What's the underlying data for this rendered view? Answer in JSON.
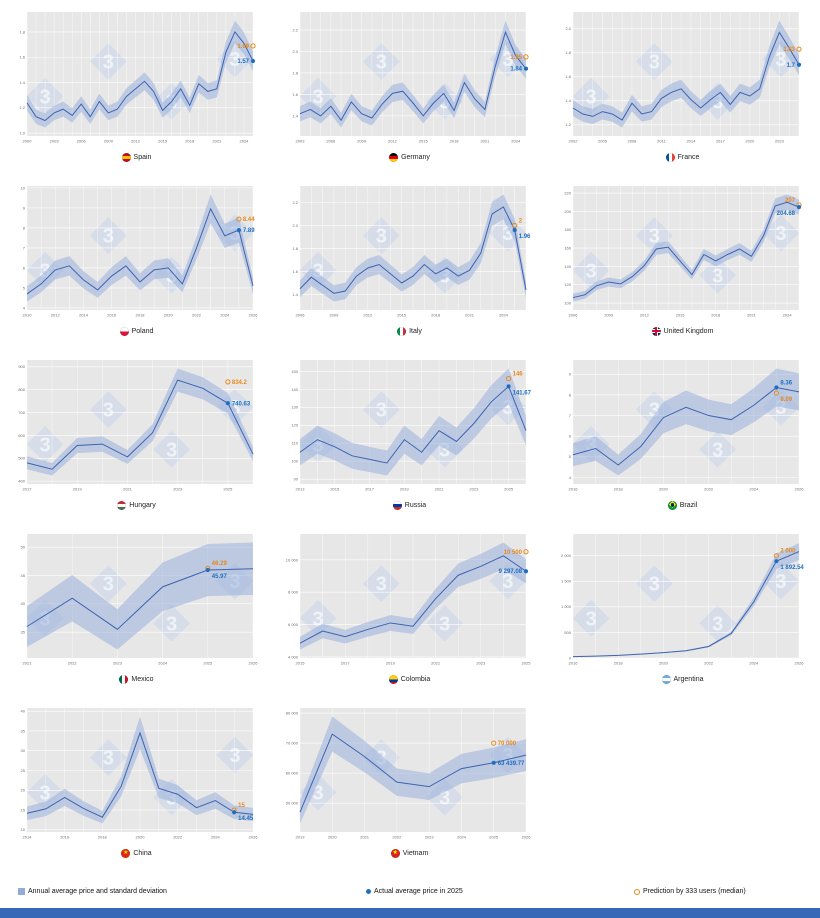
{
  "legend": {
    "items": [
      {
        "label": "Annual average price and standard deviation",
        "marker": "band-swatch"
      },
      {
        "label": "Actual average price in 2025",
        "marker": "filled-dot"
      },
      {
        "label": "Prediction by 333 users (median)",
        "marker": "hollow-circle"
      }
    ]
  },
  "style": {
    "plot_bg": "#e7e7e8",
    "grid": "#ffffff",
    "band": "#92abd9",
    "line": "#3e63b0",
    "actual": "#1e6fc0",
    "prediction": "#e8891b",
    "watermark": "#c6d4e9",
    "watermark_text": "#f3f7fb",
    "axis_text": "#6e6e6e",
    "footer_bar": "#3668b8"
  },
  "chart_data": [
    {
      "type": "line",
      "country": "Spain",
      "flag": {
        "name": "flag-spain-icon",
        "type": "h",
        "stripes": [
          "#c60b1e",
          "#ffc400",
          "#c60b1e"
        ]
      },
      "years": [
        2000,
        2001,
        2002,
        2003,
        2004,
        2005,
        2006,
        2007,
        2008,
        2009,
        2010,
        2011,
        2012,
        2013,
        2014,
        2015,
        2016,
        2017,
        2018,
        2019,
        2020,
        2021,
        2022,
        2023,
        2024,
        2025
      ],
      "values": [
        1.24,
        1.13,
        1.1,
        1.16,
        1.19,
        1.14,
        1.23,
        1.13,
        1.25,
        1.16,
        1.19,
        1.29,
        1.35,
        1.41,
        1.33,
        1.18,
        1.25,
        1.35,
        1.22,
        1.39,
        1.33,
        1.35,
        1.64,
        1.8,
        1.71,
        1.57
      ],
      "spread_frac": 0.05,
      "marker_year": 2025,
      "prediction": {
        "value": 1.69,
        "label": "1.69"
      },
      "actual": {
        "value": 1.57,
        "label": "1.57"
      }
    },
    {
      "type": "line",
      "country": "Germany",
      "flag": {
        "name": "flag-germany-icon",
        "type": "h",
        "stripes": [
          "#000000",
          "#dd0000",
          "#ffce00"
        ]
      },
      "years": [
        2003,
        2004,
        2005,
        2006,
        2007,
        2008,
        2009,
        2010,
        2011,
        2012,
        2013,
        2014,
        2015,
        2016,
        2017,
        2018,
        2019,
        2020,
        2021,
        2022,
        2023,
        2024,
        2025
      ],
      "values": [
        1.42,
        1.46,
        1.4,
        1.49,
        1.36,
        1.53,
        1.42,
        1.38,
        1.51,
        1.61,
        1.63,
        1.52,
        1.4,
        1.52,
        1.61,
        1.45,
        1.71,
        1.56,
        1.46,
        1.86,
        2.18,
        1.96,
        1.84
      ],
      "spread_frac": 0.05,
      "marker_year": 2025,
      "prediction": {
        "value": 1.95,
        "label": "1.95"
      },
      "actual": {
        "value": 1.84,
        "label": "1.84"
      }
    },
    {
      "type": "line",
      "country": "France",
      "flag": {
        "name": "flag-france-icon",
        "type": "v",
        "stripes": [
          "#0055a4",
          "#ffffff",
          "#ef4135"
        ]
      },
      "years": [
        2002,
        2003,
        2004,
        2005,
        2006,
        2007,
        2008,
        2009,
        2010,
        2011,
        2012,
        2013,
        2014,
        2015,
        2016,
        2017,
        2018,
        2019,
        2020,
        2021,
        2022,
        2023,
        2024,
        2025
      ],
      "values": [
        1.34,
        1.29,
        1.27,
        1.31,
        1.29,
        1.24,
        1.38,
        1.29,
        1.31,
        1.42,
        1.47,
        1.5,
        1.41,
        1.34,
        1.41,
        1.47,
        1.37,
        1.47,
        1.44,
        1.5,
        1.77,
        1.97,
        1.84,
        1.7
      ],
      "spread_frac": 0.05,
      "marker_year": 2025,
      "prediction": {
        "value": 1.83,
        "label": "1.83"
      },
      "actual": {
        "value": 1.7,
        "label": "1.7"
      }
    },
    {
      "type": "line",
      "country": "Poland",
      "flag": {
        "name": "flag-poland-icon",
        "type": "h",
        "stripes": [
          "#ffffff",
          "#dc143c"
        ]
      },
      "years": [
        2010,
        2011,
        2012,
        2013,
        2014,
        2015,
        2016,
        2017,
        2018,
        2019,
        2020,
        2021,
        2022,
        2023,
        2024,
        2025,
        2026
      ],
      "values": [
        4.7,
        5.2,
        5.9,
        6.1,
        5.4,
        4.9,
        5.6,
        6.1,
        5.3,
        5.9,
        6.0,
        5.2,
        7.0,
        8.95,
        7.6,
        7.89,
        5.1
      ],
      "spread_frac": 0.08,
      "marker_year": 2025,
      "prediction": {
        "value": 8.44,
        "label": "8.44"
      },
      "actual": {
        "value": 7.89,
        "label": "7.89"
      }
    },
    {
      "type": "line",
      "country": "Italy",
      "flag": {
        "name": "flag-italy-icon",
        "type": "v",
        "stripes": [
          "#009246",
          "#ffffff",
          "#ce2b37"
        ]
      },
      "years": [
        2006,
        2007,
        2008,
        2009,
        2010,
        2011,
        2012,
        2013,
        2014,
        2015,
        2016,
        2017,
        2018,
        2019,
        2020,
        2021,
        2022,
        2023,
        2024,
        2025,
        2026
      ],
      "values": [
        1.45,
        1.55,
        1.48,
        1.41,
        1.43,
        1.56,
        1.63,
        1.66,
        1.58,
        1.5,
        1.56,
        1.66,
        1.58,
        1.63,
        1.56,
        1.61,
        1.76,
        2.1,
        2.16,
        1.96,
        1.44
      ],
      "spread_frac": 0.05,
      "marker_year": 2025,
      "prediction": {
        "value": 2,
        "label": "2"
      },
      "actual": {
        "value": 1.96,
        "label": "1.96"
      }
    },
    {
      "type": "line",
      "country": "United Kingdom",
      "flag": {
        "name": "flag-united-kingdom-icon",
        "type": "uk"
      },
      "years": [
        2006,
        2007,
        2008,
        2009,
        2010,
        2011,
        2012,
        2013,
        2014,
        2015,
        2016,
        2017,
        2018,
        2019,
        2020,
        2021,
        2022,
        2023,
        2024,
        2025
      ],
      "values": [
        106,
        109,
        119,
        123,
        121,
        129,
        141,
        159,
        161,
        146,
        131,
        153,
        146,
        153,
        159,
        151,
        173,
        206,
        210,
        204.68
      ],
      "spread_frac": 0.04,
      "marker_year": 2025,
      "prediction": {
        "value": 207,
        "label": "207"
      },
      "actual": {
        "value": 204.68,
        "label": "204.68"
      }
    },
    {
      "type": "line",
      "country": "Hungary",
      "flag": {
        "name": "flag-hungary-icon",
        "type": "h",
        "stripes": [
          "#ce2939",
          "#ffffff",
          "#477050"
        ]
      },
      "years": [
        2017,
        2018,
        2019,
        2020,
        2021,
        2022,
        2023,
        2024,
        2025,
        2026
      ],
      "values": [
        480,
        452,
        556,
        562,
        506,
        612,
        842,
        806,
        740.63,
        518
      ],
      "spread_frac": 0.06,
      "marker_year": 2025,
      "prediction": {
        "value": 834.2,
        "label": "834.2"
      },
      "actual": {
        "value": 740.63,
        "label": "740.63"
      }
    },
    {
      "type": "line",
      "country": "Russia",
      "flag": {
        "name": "flag-russia-icon",
        "type": "h",
        "stripes": [
          "#ffffff",
          "#0039a6",
          "#d52b1e"
        ]
      },
      "years": [
        2013,
        2014,
        2015,
        2016,
        2017,
        2018,
        2019,
        2020,
        2021,
        2022,
        2023,
        2024,
        2025,
        2026
      ],
      "values": [
        105,
        112,
        108,
        103,
        101,
        99,
        112,
        105,
        117,
        111,
        121,
        133,
        141.67,
        117
      ],
      "spread_frac": 0.07,
      "marker_year": 2025,
      "prediction": {
        "value": 146,
        "label": "146"
      },
      "actual": {
        "value": 141.67,
        "label": "141.67"
      }
    },
    {
      "type": "line",
      "country": "Brazil",
      "flag": {
        "name": "flag-brazil-icon",
        "type": "br"
      },
      "years": [
        2016,
        2017,
        2018,
        2019,
        2020,
        2021,
        2022,
        2023,
        2024,
        2025,
        2026
      ],
      "values": [
        5.1,
        5.4,
        4.6,
        5.5,
        6.9,
        7.4,
        7.0,
        6.8,
        7.5,
        8.36,
        8.15
      ],
      "spread_frac": 0.11,
      "marker_year": 2025,
      "prediction": {
        "value": 8.09,
        "label": "8.09"
      },
      "actual": {
        "value": 8.36,
        "label": "8.36"
      }
    },
    {
      "type": "line",
      "country": "Mexico",
      "flag": {
        "name": "flag-mexico-icon",
        "type": "v",
        "stripes": [
          "#006847",
          "#ffffff",
          "#ce1126"
        ]
      },
      "years": [
        2021,
        2022,
        2023,
        2024,
        2025,
        2026
      ],
      "values": [
        36,
        41,
        35.5,
        43,
        45.97,
        46.2
      ],
      "spread_frac": 0.1,
      "marker_year": 2025,
      "prediction": {
        "value": 46.29,
        "label": "46.29"
      },
      "actual": {
        "value": 45.97,
        "label": "45.97"
      }
    },
    {
      "type": "line",
      "country": "Colombia",
      "flag": {
        "name": "flag-colombia-icon",
        "type": "h",
        "stripes": [
          "#fcd116",
          "#fcd116",
          "#003893",
          "#ce1126"
        ]
      },
      "years": [
        2015,
        2016,
        2017,
        2018,
        2019,
        2020,
        2021,
        2022,
        2023,
        2024,
        2025
      ],
      "values": [
        4850,
        5600,
        5250,
        5700,
        6100,
        5900,
        7600,
        9050,
        9600,
        10250,
        9297.08
      ],
      "spread_frac": 0.08,
      "marker_year": 2025,
      "prediction": {
        "value": 10500,
        "label": "10 500"
      },
      "actual": {
        "value": 9297.08,
        "label": "9 297.08"
      }
    },
    {
      "type": "line",
      "country": "Argentina",
      "flag": {
        "name": "flag-argentina-icon",
        "type": "h",
        "stripes": [
          "#74acdf",
          "#ffffff",
          "#74acdf"
        ]
      },
      "years": [
        2016,
        2017,
        2018,
        2019,
        2020,
        2021,
        2022,
        2023,
        2024,
        2025,
        2026
      ],
      "values": [
        28,
        36,
        52,
        76,
        105,
        142,
        225,
        480,
        1100,
        1892.54,
        2080
      ],
      "spread_frac": 0.08,
      "marker_year": 2025,
      "prediction": {
        "value": 2000,
        "label": "2 000"
      },
      "actual": {
        "value": 1892.54,
        "label": "1 892.54"
      }
    },
    {
      "type": "line",
      "country": "China",
      "flag": {
        "name": "flag-china-icon",
        "type": "star",
        "bg": "#de2910",
        "star": "#ffde00"
      },
      "years": [
        2014,
        2015,
        2016,
        2017,
        2018,
        2019,
        2020,
        2021,
        2022,
        2023,
        2024,
        2025,
        2026
      ],
      "values": [
        14.2,
        15.3,
        18.2,
        15.4,
        13.2,
        21.0,
        34.5,
        20.5,
        19.0,
        15.6,
        17.4,
        14.45,
        13.9
      ],
      "spread_frac": 0.12,
      "marker_year": 2025,
      "prediction": {
        "value": 15,
        "label": "15"
      },
      "actual": {
        "value": 14.45,
        "label": "14.45"
      }
    },
    {
      "type": "line",
      "country": "Vietnam",
      "flag": {
        "name": "flag-vietnam-icon",
        "type": "star",
        "bg": "#da251d",
        "star": "#ffff00"
      },
      "years": [
        2019,
        2020,
        2021,
        2022,
        2023,
        2024,
        2025,
        2026
      ],
      "values": [
        47000,
        73000,
        65500,
        57000,
        55500,
        61500,
        63439.77,
        66000
      ],
      "spread_frac": 0.08,
      "marker_year": 2025,
      "prediction": {
        "value": 70000,
        "label": "70 000"
      },
      "actual": {
        "value": 63439.77,
        "label": "63 439.77"
      }
    }
  ]
}
